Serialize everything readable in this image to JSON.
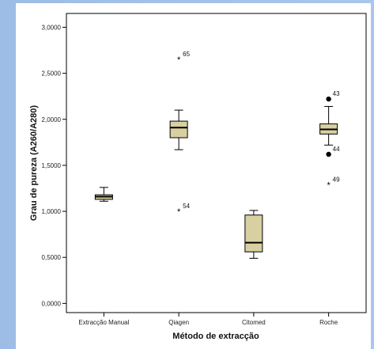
{
  "chart_data": {
    "type": "boxplot",
    "xlabel": "Método de extracção",
    "ylabel": "Grau de pureza (A260/A280)",
    "ylim": [
      -0.1,
      3.15
    ],
    "yticks": [
      "0,0000",
      "0,5000",
      "1,0000",
      "1,5000",
      "2,0000",
      "2,5000",
      "3,0000"
    ],
    "ytick_values": [
      0,
      0.5,
      1.0,
      1.5,
      2.0,
      2.5,
      3.0
    ],
    "grid": false,
    "box_fill": "#d8d0a0",
    "categories": [
      "Extracção Manual",
      "Qiagen",
      "Citomed",
      "Roche"
    ],
    "boxes": [
      {
        "category": "Extracção Manual",
        "whisker_low": 1.11,
        "q1": 1.13,
        "median": 1.16,
        "q3": 1.18,
        "whisker_high": 1.26,
        "outliers": []
      },
      {
        "category": "Qiagen",
        "whisker_low": 1.67,
        "q1": 1.8,
        "median": 1.91,
        "q3": 1.98,
        "whisker_high": 2.1,
        "outliers": [
          {
            "value": 2.65,
            "marker": "star",
            "label": "65"
          },
          {
            "value": 1.0,
            "marker": "star",
            "label": "54"
          }
        ]
      },
      {
        "category": "Citomed",
        "whisker_low": 0.49,
        "q1": 0.56,
        "median": 0.66,
        "q3": 0.96,
        "whisker_high": 1.01,
        "outliers": []
      },
      {
        "category": "Roche",
        "whisker_low": 1.72,
        "q1": 1.84,
        "median": 1.89,
        "q3": 1.95,
        "whisker_high": 2.14,
        "outliers": [
          {
            "value": 2.22,
            "marker": "circle",
            "label": "43"
          },
          {
            "value": 1.62,
            "marker": "circle",
            "label": "44"
          },
          {
            "value": 1.29,
            "marker": "star",
            "label": "49"
          }
        ]
      }
    ]
  }
}
